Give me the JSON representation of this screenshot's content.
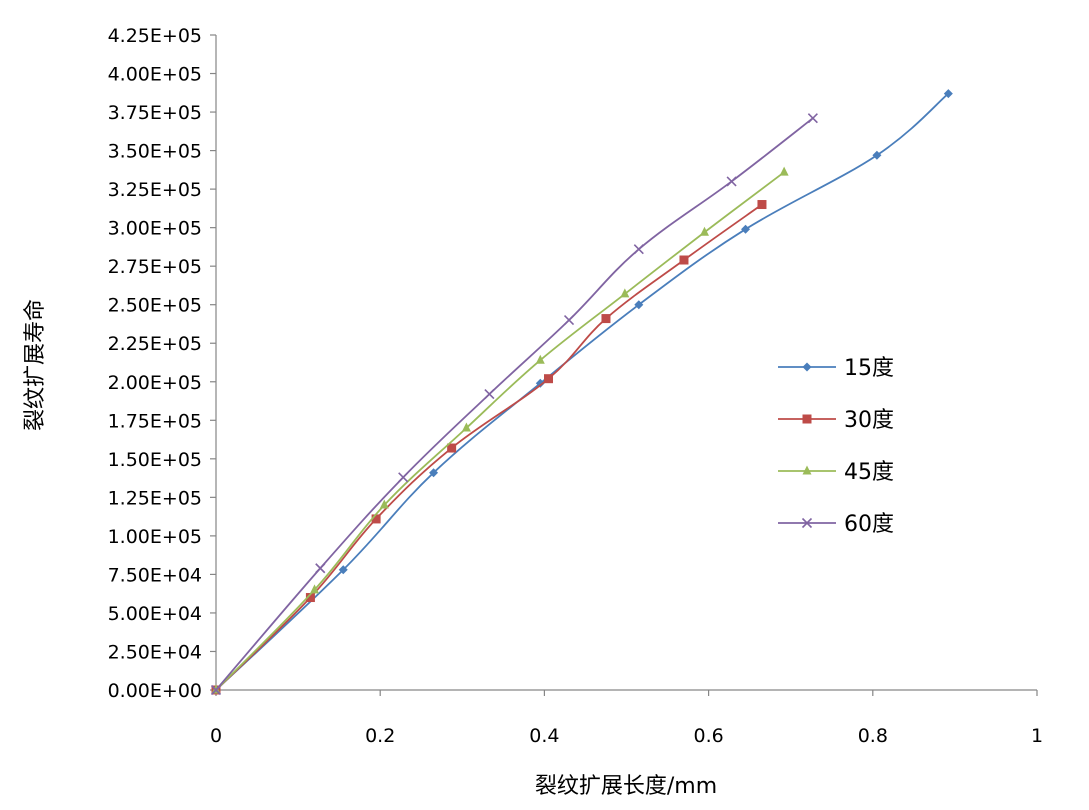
{
  "chart_data": {
    "type": "scatter",
    "title": "",
    "xlabel": "裂纹扩展长度/mm",
    "ylabel": "裂纹扩展寿命",
    "xlim": [
      0,
      1
    ],
    "ylim": [
      0,
      425000
    ],
    "x_ticks": [
      "0",
      "0.2",
      "0.4",
      "0.6",
      "0.8",
      "1"
    ],
    "y_ticks": [
      "0.00E+00",
      "2.50E+04",
      "5.00E+04",
      "7.50E+04",
      "1.00E+05",
      "1.25E+05",
      "1.50E+05",
      "1.75E+05",
      "2.00E+05",
      "2.25E+05",
      "2.50E+05",
      "2.75E+05",
      "3.00E+05",
      "3.25E+05",
      "3.50E+05",
      "3.75E+05",
      "4.00E+05",
      "4.25E+05"
    ],
    "grid": false,
    "legend_position": "right",
    "series": [
      {
        "name": "15度",
        "color": "#4A7EBB",
        "marker": "diamond",
        "x": [
          0,
          0.155,
          0.265,
          0.395,
          0.515,
          0.645,
          0.805,
          0.892
        ],
        "y": [
          0,
          78000,
          141000,
          199000,
          250000,
          299000,
          347000,
          387000
        ]
      },
      {
        "name": "30度",
        "color": "#BE4B48",
        "marker": "square",
        "x": [
          0,
          0.115,
          0.195,
          0.287,
          0.405,
          0.475,
          0.57,
          0.665
        ],
        "y": [
          0,
          60000,
          111000,
          157000,
          202000,
          241000,
          279000,
          315000
        ]
      },
      {
        "name": "45度",
        "color": "#9BBB59",
        "marker": "triangle",
        "x": [
          0,
          0.12,
          0.205,
          0.305,
          0.395,
          0.498,
          0.595,
          0.692
        ],
        "y": [
          0,
          65000,
          120000,
          170000,
          214000,
          257000,
          297000,
          336000
        ]
      },
      {
        "name": "60度",
        "color": "#8064A2",
        "marker": "x",
        "x": [
          0,
          0.127,
          0.228,
          0.333,
          0.43,
          0.515,
          0.628,
          0.727
        ],
        "y": [
          0,
          79000,
          138000,
          192000,
          240000,
          286000,
          330000,
          371000
        ]
      }
    ]
  }
}
